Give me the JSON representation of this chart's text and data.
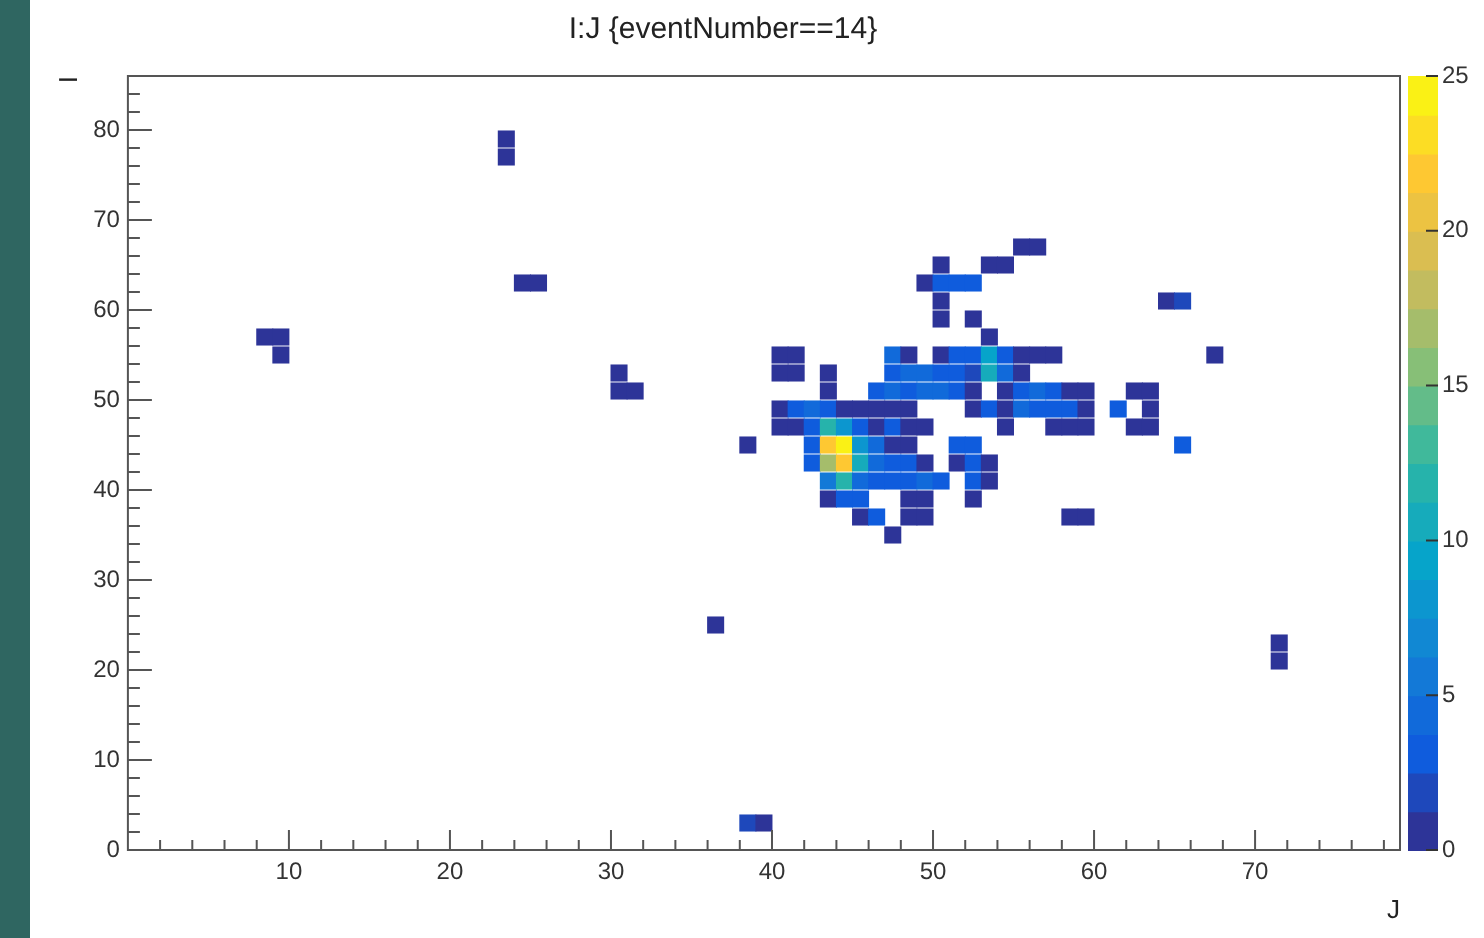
{
  "chart_data": {
    "type": "scatter",
    "title": "I:J {eventNumber==14}",
    "xlabel": "J",
    "ylabel": "I",
    "marker": "square",
    "xlim": [
      0,
      79
    ],
    "ylim": [
      0,
      86
    ],
    "xticks": [
      {
        "value": 2,
        "label": null
      },
      {
        "value": 4,
        "label": null
      },
      {
        "value": 6,
        "label": null
      },
      {
        "value": 8,
        "label": null
      },
      10,
      {
        "value": 12,
        "label": null
      },
      {
        "value": 14,
        "label": null
      },
      {
        "value": 16,
        "label": null
      },
      {
        "value": 18,
        "label": null
      },
      20,
      {
        "value": 22,
        "label": null
      },
      {
        "value": 24,
        "label": null
      },
      {
        "value": 26,
        "label": null
      },
      {
        "value": 28,
        "label": null
      },
      30,
      {
        "value": 32,
        "label": null
      },
      {
        "value": 34,
        "label": null
      },
      {
        "value": 36,
        "label": null
      },
      {
        "value": 38,
        "label": null
      },
      40,
      {
        "value": 42,
        "label": null
      },
      {
        "value": 44,
        "label": null
      },
      {
        "value": 46,
        "label": null
      },
      {
        "value": 48,
        "label": null
      },
      50,
      {
        "value": 52,
        "label": null
      },
      {
        "value": 54,
        "label": null
      },
      {
        "value": 56,
        "label": null
      },
      {
        "value": 58,
        "label": null
      },
      60,
      {
        "value": 62,
        "label": null
      },
      {
        "value": 64,
        "label": null
      },
      {
        "value": 66,
        "label": null
      },
      {
        "value": 68,
        "label": null
      },
      70,
      {
        "value": 72,
        "label": null
      },
      {
        "value": 74,
        "label": null
      },
      {
        "value": 76,
        "label": null
      },
      {
        "value": 78,
        "label": null
      }
    ],
    "yticks": [
      0,
      {
        "value": 2,
        "label": null
      },
      {
        "value": 4,
        "label": null
      },
      {
        "value": 6,
        "label": null
      },
      {
        "value": 8,
        "label": null
      },
      10,
      {
        "value": 12,
        "label": null
      },
      {
        "value": 14,
        "label": null
      },
      {
        "value": 16,
        "label": null
      },
      {
        "value": 18,
        "label": null
      },
      20,
      {
        "value": 22,
        "label": null
      },
      {
        "value": 24,
        "label": null
      },
      {
        "value": 26,
        "label": null
      },
      {
        "value": 28,
        "label": null
      },
      30,
      {
        "value": 32,
        "label": null
      },
      {
        "value": 34,
        "label": null
      },
      {
        "value": 36,
        "label": null
      },
      {
        "value": 38,
        "label": null
      },
      40,
      {
        "value": 42,
        "label": null
      },
      {
        "value": 44,
        "label": null
      },
      {
        "value": 46,
        "label": null
      },
      {
        "value": 48,
        "label": null
      },
      50,
      {
        "value": 52,
        "label": null
      },
      {
        "value": 54,
        "label": null
      },
      {
        "value": 56,
        "label": null
      },
      {
        "value": 58,
        "label": null
      },
      60,
      {
        "value": 62,
        "label": null
      },
      {
        "value": 64,
        "label": null
      },
      {
        "value": 66,
        "label": null
      },
      {
        "value": 68,
        "label": null
      },
      70,
      {
        "value": 72,
        "label": null
      },
      {
        "value": 74,
        "label": null
      },
      {
        "value": 76,
        "label": null
      },
      {
        "value": 78,
        "label": null
      },
      80,
      {
        "value": 82,
        "label": null
      },
      {
        "value": 84,
        "label": null
      }
    ],
    "clim": [
      0,
      25
    ],
    "cticks": [
      0,
      5,
      10,
      15,
      20,
      25
    ],
    "x": [
      23.5,
      23.5,
      55.5,
      56.5,
      50.5,
      53.5,
      54.5,
      24.5,
      25.5,
      49.5,
      50.5,
      51.5,
      52.5,
      50.5,
      64.5,
      65.5,
      50.5,
      52.5,
      8.5,
      9.5,
      53.5,
      9.5,
      40.5,
      41.5,
      47.5,
      48.5,
      50.5,
      51.5,
      52.5,
      53.5,
      54.5,
      55.5,
      56.5,
      57.5,
      67.5,
      30.5,
      40.5,
      41.5,
      43.5,
      47.5,
      48.5,
      49.5,
      50.5,
      51.5,
      52.5,
      53.5,
      54.5,
      55.5,
      30.5,
      31.5,
      43.5,
      46.5,
      47.5,
      48.5,
      49.5,
      50.5,
      51.5,
      52.5,
      54.5,
      55.5,
      56.5,
      57.5,
      58.5,
      59.5,
      62.5,
      63.5,
      40.5,
      41.5,
      42.5,
      43.5,
      44.5,
      45.5,
      46.5,
      47.5,
      48.5,
      52.5,
      53.5,
      54.5,
      55.5,
      56.5,
      57.5,
      58.5,
      59.5,
      61.5,
      63.5,
      40.5,
      41.5,
      42.5,
      43.5,
      44.5,
      45.5,
      46.5,
      47.5,
      48.5,
      49.5,
      54.5,
      57.5,
      58.5,
      59.5,
      62.5,
      63.5,
      38.5,
      42.5,
      43.5,
      44.5,
      45.5,
      46.5,
      47.5,
      48.5,
      51.5,
      52.5,
      65.5,
      42.5,
      43.5,
      44.5,
      45.5,
      46.5,
      47.5,
      48.5,
      49.5,
      51.5,
      52.5,
      53.5,
      43.5,
      44.5,
      45.5,
      46.5,
      47.5,
      48.5,
      49.5,
      50.5,
      52.5,
      53.5,
      43.5,
      44.5,
      45.5,
      48.5,
      49.5,
      52.5,
      45.5,
      46.5,
      48.5,
      49.5,
      58.5,
      59.5,
      47.5,
      36.5,
      71.5,
      71.5,
      38.5,
      39.5
    ],
    "values": [
      79,
      77,
      67,
      67,
      65,
      65,
      65,
      63,
      63,
      63,
      63,
      63,
      63,
      61,
      61,
      61,
      59,
      59,
      57,
      57,
      57,
      55,
      55,
      55,
      55,
      55,
      55,
      55,
      55,
      55,
      55,
      55,
      55,
      55,
      55,
      53,
      53,
      53,
      53,
      53,
      53,
      53,
      53,
      53,
      53,
      53,
      53,
      53,
      51,
      51,
      51,
      51,
      51,
      51,
      51,
      51,
      51,
      51,
      51,
      51,
      51,
      51,
      51,
      51,
      51,
      51,
      49,
      49,
      49,
      49,
      49,
      49,
      49,
      49,
      49,
      49,
      49,
      49,
      49,
      49,
      49,
      49,
      49,
      49,
      49,
      47,
      47,
      47,
      47,
      47,
      47,
      47,
      47,
      47,
      47,
      47,
      47,
      47,
      47,
      47,
      47,
      45,
      45,
      45,
      45,
      45,
      45,
      45,
      45,
      45,
      45,
      45,
      43,
      43,
      43,
      43,
      43,
      43,
      43,
      43,
      43,
      43,
      43,
      41,
      41,
      41,
      41,
      41,
      41,
      41,
      41,
      41,
      41,
      39,
      39,
      39,
      39,
      39,
      39,
      37,
      37,
      37,
      37,
      37,
      37,
      35,
      25,
      23,
      21,
      3,
      3
    ],
    "cvalues": [
      1,
      1,
      1,
      1,
      1,
      1,
      1,
      1,
      1,
      1,
      3,
      3,
      3,
      1,
      1,
      2,
      1,
      1,
      1,
      1,
      1,
      1,
      1,
      1,
      4,
      1,
      1,
      3,
      3,
      9,
      3,
      1,
      1,
      1,
      1,
      1,
      1,
      1,
      1,
      3,
      4,
      4,
      3,
      3,
      2,
      11,
      4,
      1,
      1,
      1,
      1,
      3,
      4,
      3,
      4,
      4,
      3,
      1,
      1,
      3,
      4,
      3,
      1,
      1,
      1,
      1,
      1,
      3,
      4,
      3,
      1,
      1,
      1,
      1,
      1,
      1,
      3,
      1,
      4,
      3,
      3,
      3,
      1,
      3,
      1,
      1,
      1,
      3,
      12,
      8,
      3,
      1,
      3,
      1,
      1,
      1,
      1,
      1,
      1,
      1,
      1,
      1,
      3,
      22,
      25,
      8,
      4,
      1,
      1,
      3,
      3,
      3,
      3,
      17,
      22,
      10,
      4,
      3,
      3,
      1,
      1,
      3,
      1,
      6,
      12,
      4,
      3,
      3,
      3,
      4,
      3,
      3,
      1,
      1,
      3,
      3,
      1,
      1,
      1,
      1,
      3,
      1,
      1,
      1,
      1,
      1,
      1,
      1,
      1,
      2,
      1
    ]
  }
}
